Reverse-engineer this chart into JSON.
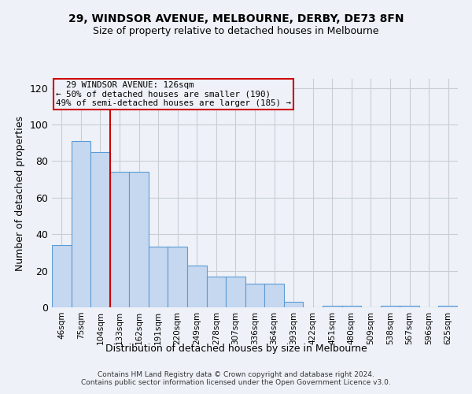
{
  "title_line1": "29, WINDSOR AVENUE, MELBOURNE, DERBY, DE73 8FN",
  "title_line2": "Size of property relative to detached houses in Melbourne",
  "xlabel": "Distribution of detached houses by size in Melbourne",
  "ylabel": "Number of detached properties",
  "bar_labels": [
    "46sqm",
    "75sqm",
    "104sqm",
    "133sqm",
    "162sqm",
    "191sqm",
    "220sqm",
    "249sqm",
    "278sqm",
    "307sqm",
    "336sqm",
    "364sqm",
    "393sqm",
    "422sqm",
    "451sqm",
    "480sqm",
    "509sqm",
    "538sqm",
    "567sqm",
    "596sqm",
    "625sqm"
  ],
  "bar_values": [
    34,
    91,
    85,
    74,
    74,
    33,
    33,
    23,
    17,
    17,
    13,
    13,
    3,
    0,
    1,
    1,
    0,
    1,
    1,
    0,
    1
  ],
  "bar_color": "#c5d8f0",
  "bar_edgecolor": "#5b9bd5",
  "grid_color": "#c8cdd4",
  "background_color": "#eef2f8",
  "annotation_text": "  29 WINDSOR AVENUE: 126sqm  \n← 50% of detached houses are smaller (190)\n49% of semi-detached houses are larger (185) →",
  "annotation_box_edgecolor": "#cc0000",
  "vline_x_index": 2,
  "vline_color": "#cc0000",
  "ylim": [
    0,
    125
  ],
  "yticks": [
    0,
    20,
    40,
    60,
    80,
    100,
    120
  ],
  "footer_line1": "Contains HM Land Registry data © Crown copyright and database right 2024.",
  "footer_line2": "Contains public sector information licensed under the Open Government Licence v3.0."
}
